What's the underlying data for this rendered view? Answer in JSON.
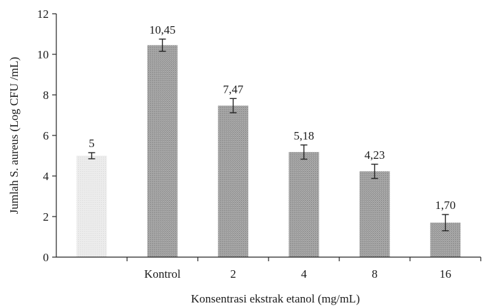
{
  "chart_data": {
    "type": "bar",
    "categories": [
      "",
      "Kontrol",
      "2",
      "4",
      "8",
      "16"
    ],
    "values": [
      5,
      10.45,
      7.47,
      5.18,
      4.23,
      1.7
    ],
    "value_labels": [
      "5",
      "10,45",
      "7,47",
      "5,18",
      "4,23",
      "1,70"
    ],
    "error": [
      0.15,
      0.3,
      0.35,
      0.35,
      0.35,
      0.4
    ],
    "title": "",
    "xlabel": "Konsentrasi ekstrak etanol (mg/mL)",
    "ylabel": "Jumlah S. aureus (Log CFU /mL)",
    "ylim": [
      0,
      12
    ],
    "yticks": [
      0,
      2,
      4,
      6,
      8,
      10,
      12
    ],
    "grid": false,
    "legend": "none",
    "colors": {
      "first_bar": "#e4e4e4",
      "bars": "#9a9a9a",
      "axis": "#222222"
    }
  }
}
